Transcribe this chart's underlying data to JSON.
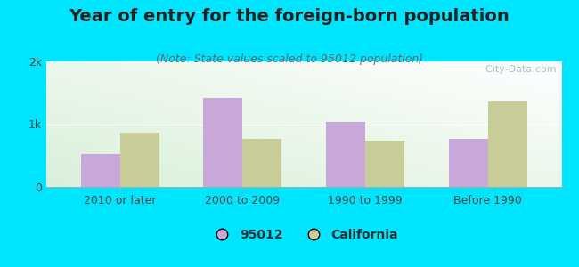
{
  "title": "Year of entry for the foreign-born population",
  "subtitle": "(Note: State values scaled to 95012 population)",
  "categories": [
    "2010 or later",
    "2000 to 2009",
    "1990 to 1999",
    "Before 1990"
  ],
  "values_95012": [
    530,
    1420,
    1030,
    760
  ],
  "values_california": [
    860,
    760,
    740,
    1360
  ],
  "color_95012": "#c8a8d8",
  "color_california": "#c8cc99",
  "ylim": [
    0,
    2000
  ],
  "yticks": [
    0,
    1000,
    2000
  ],
  "ytick_labels": [
    "0",
    "1k",
    "2k"
  ],
  "background_color": "#00e5ff",
  "bar_width": 0.32,
  "title_fontsize": 14,
  "subtitle_fontsize": 9,
  "tick_fontsize": 9,
  "legend_fontsize": 10,
  "watermark": "  City-Data.com"
}
